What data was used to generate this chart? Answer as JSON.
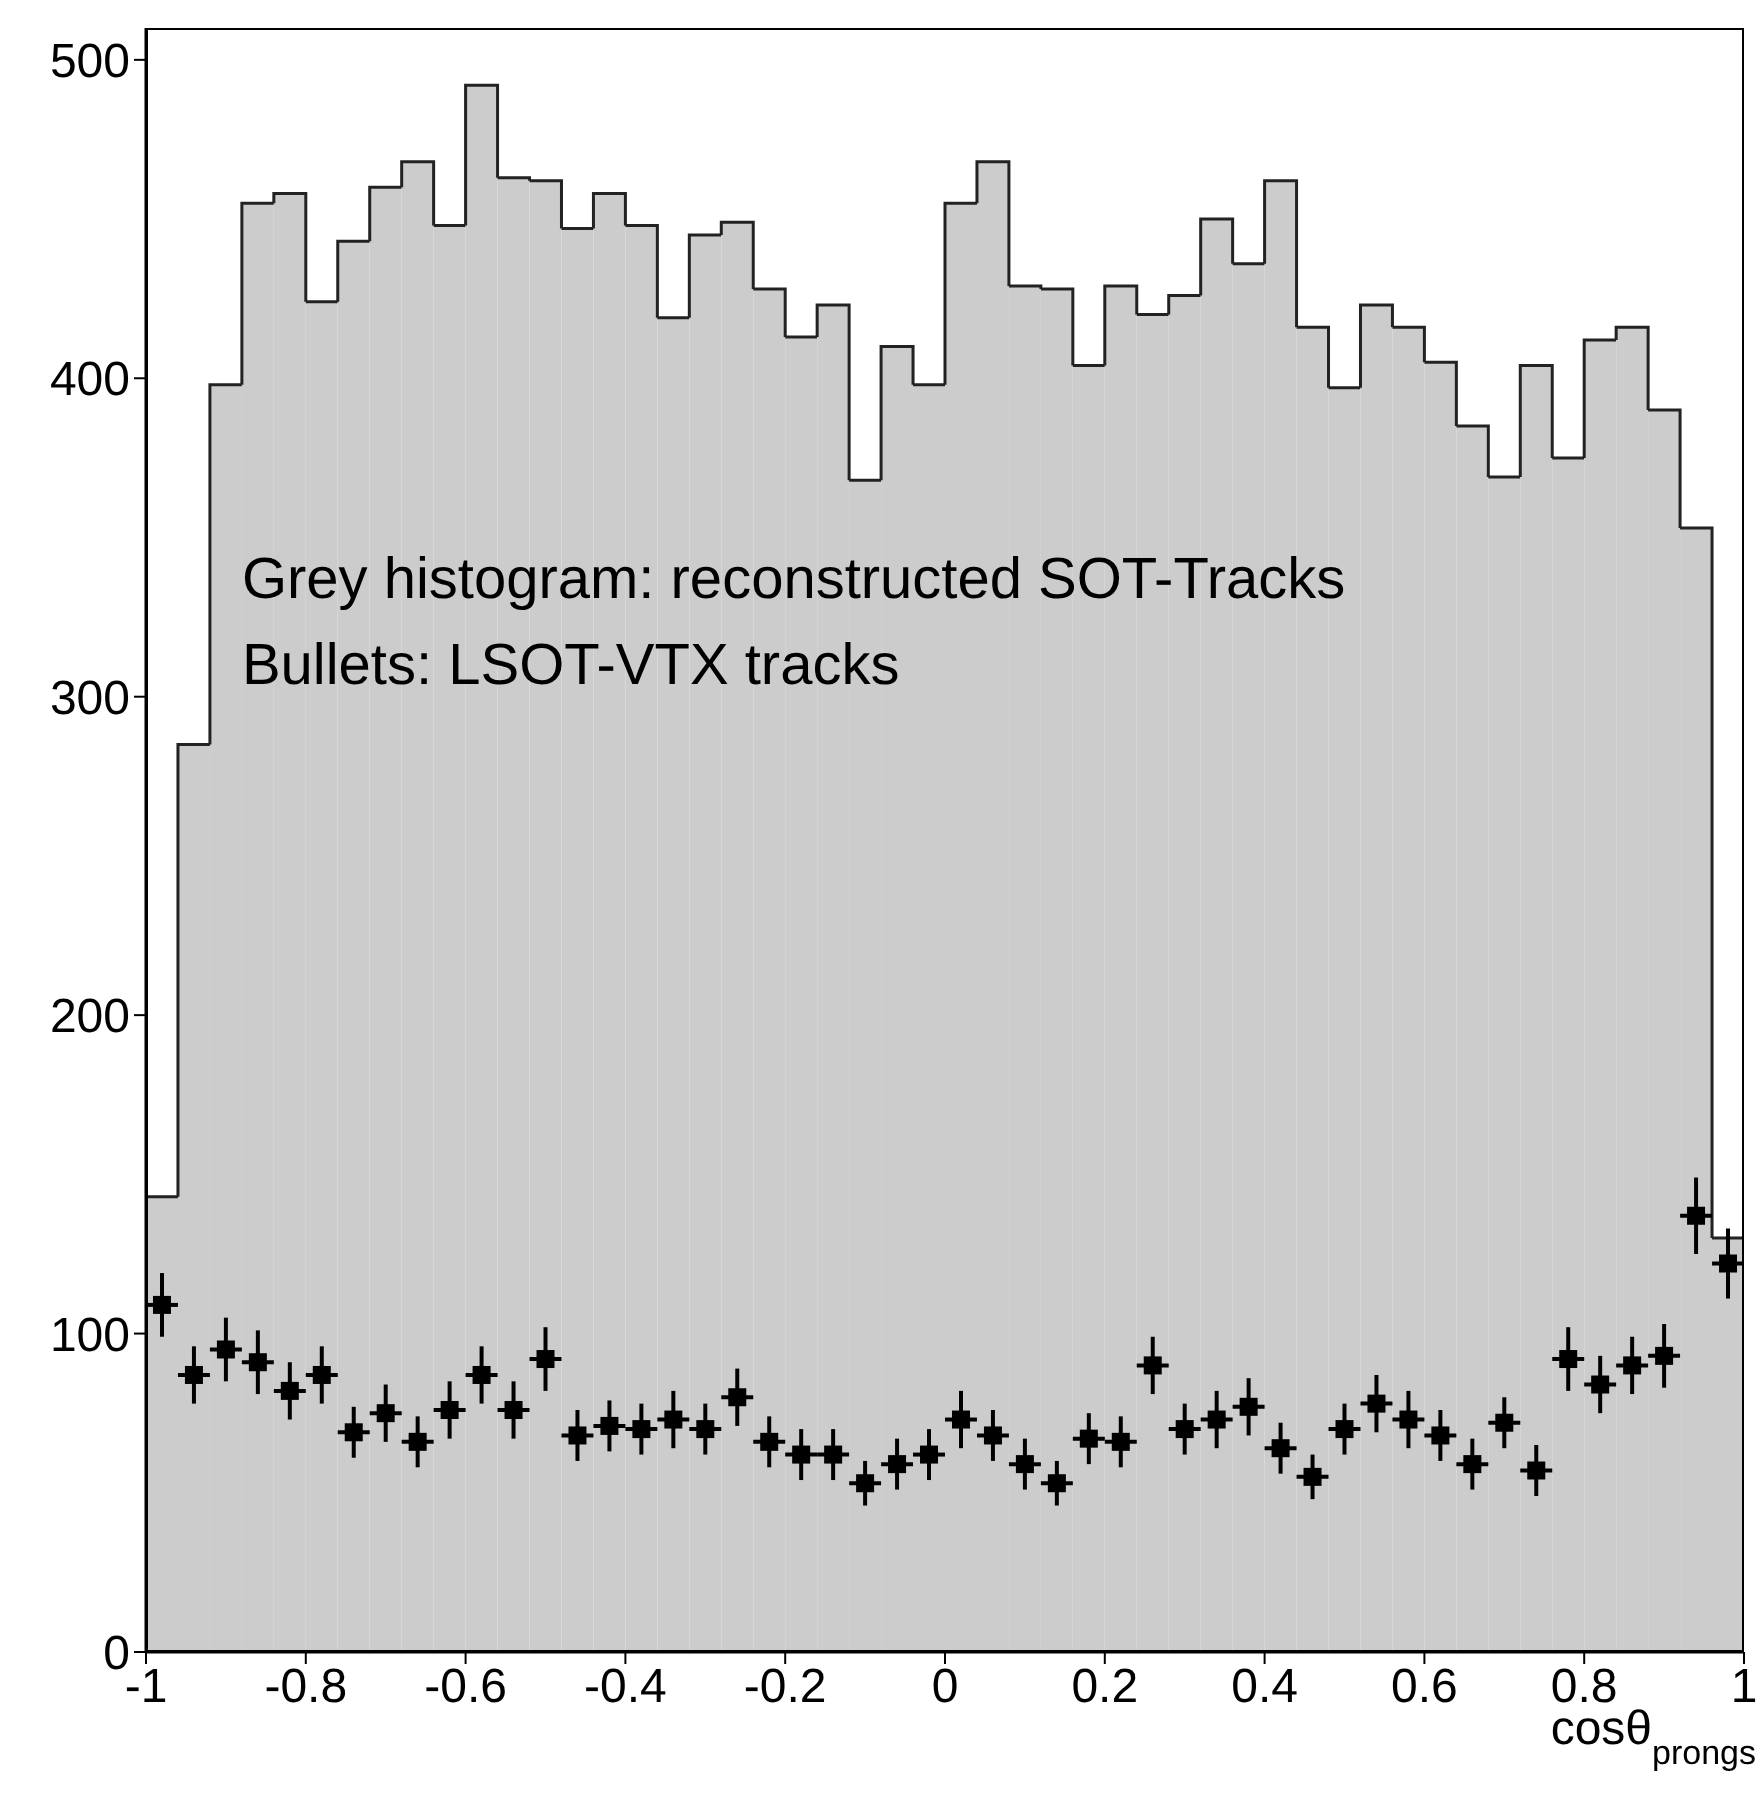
{
  "chart_data": {
    "type": "histogram",
    "xlabel": "cosθ$_{prongs}$",
    "annotations": [
      {
        "text": "Grey histogram: reconstructed SOT-Tracks",
        "x": -0.88,
        "y": 347
      },
      {
        "text": "Bullets: LSOT-VTX tracks",
        "x": -0.88,
        "y": 320
      }
    ],
    "bins": [
      -1,
      -0.96,
      -0.92,
      -0.88,
      -0.84,
      -0.8,
      -0.76,
      -0.72,
      -0.68,
      -0.64,
      -0.6,
      -0.56,
      -0.52,
      -0.48,
      -0.44,
      -0.4,
      -0.36,
      -0.32,
      -0.28,
      -0.24,
      -0.2,
      -0.16,
      -0.12,
      -0.08,
      -0.04,
      0,
      0.04,
      0.08,
      0.12,
      0.16,
      0.2,
      0.24,
      0.28,
      0.32,
      0.36,
      0.4,
      0.44,
      0.48,
      0.52,
      0.56,
      0.6,
      0.64,
      0.68,
      0.72,
      0.76,
      0.8,
      0.84,
      0.88,
      0.92,
      0.96,
      1
    ],
    "series": [
      {
        "type": "histogram",
        "color": "#cccccc",
        "values": [
          143,
          285,
          398,
          455,
          458,
          424,
          443,
          460,
          468,
          448,
          492,
          463,
          462,
          447,
          458,
          448,
          419,
          445,
          449,
          428,
          413,
          423,
          368,
          410,
          398,
          455,
          468,
          429,
          428,
          404,
          429,
          420,
          426,
          450,
          436,
          462,
          416,
          397,
          423,
          416,
          405,
          385,
          369,
          404,
          375,
          412,
          416,
          390,
          353,
          130
        ]
      },
      {
        "type": "scatter",
        "color": "#000000",
        "marker": "square",
        "x": [
          -0.98,
          -0.94,
          -0.9,
          -0.86,
          -0.82,
          -0.78,
          -0.74,
          -0.7,
          -0.66,
          -0.62,
          -0.58,
          -0.54,
          -0.5,
          -0.46,
          -0.42,
          -0.38,
          -0.34,
          -0.3,
          -0.26,
          -0.22,
          -0.18,
          -0.14,
          -0.1,
          -0.06,
          -0.02,
          0.02,
          0.06,
          0.1,
          0.14,
          0.18,
          0.22,
          0.26,
          0.3,
          0.34,
          0.38,
          0.42,
          0.46,
          0.5,
          0.54,
          0.58,
          0.62,
          0.66,
          0.7,
          0.74,
          0.78,
          0.82,
          0.86,
          0.9,
          0.94,
          0.98
        ],
        "values": [
          109,
          87,
          95,
          91,
          82,
          87,
          69,
          75,
          66,
          76,
          87,
          76,
          92,
          68,
          71,
          70,
          73,
          70,
          80,
          66,
          62,
          62,
          53,
          59,
          62,
          73,
          68,
          59,
          53,
          67,
          66,
          90,
          70,
          73,
          77,
          64,
          55,
          70,
          78,
          73,
          68,
          59,
          72,
          57,
          92,
          84,
          90,
          93,
          137,
          122
        ],
        "errors": [
          10,
          9,
          10,
          10,
          9,
          9,
          8,
          9,
          8,
          9,
          9,
          9,
          10,
          8,
          8,
          8,
          9,
          8,
          9,
          8,
          8,
          8,
          7,
          8,
          8,
          9,
          8,
          8,
          7,
          8,
          8,
          9,
          8,
          9,
          9,
          8,
          7,
          8,
          9,
          9,
          8,
          8,
          8,
          8,
          10,
          9,
          9,
          10,
          12,
          11
        ],
        "xerrors": [
          0.02,
          0.02,
          0.02,
          0.02,
          0.02,
          0.02,
          0.02,
          0.02,
          0.02,
          0.02,
          0.02,
          0.02,
          0.02,
          0.02,
          0.02,
          0.02,
          0.02,
          0.02,
          0.02,
          0.02,
          0.02,
          0.02,
          0.02,
          0.02,
          0.02,
          0.02,
          0.02,
          0.02,
          0.02,
          0.02,
          0.02,
          0.02,
          0.02,
          0.02,
          0.02,
          0.02,
          0.02,
          0.02,
          0.02,
          0.02,
          0.02,
          0.02,
          0.02,
          0.02,
          0.02,
          0.02,
          0.02,
          0.02,
          0.02,
          0.02
        ]
      }
    ],
    "xlim": [
      -1,
      1
    ],
    "xticks": [
      -1,
      -0.8,
      -0.6,
      -0.4,
      -0.2,
      0,
      0.2,
      0.4,
      0.6,
      0.8,
      1
    ],
    "ylim": [
      0,
      510
    ],
    "yticks": [
      0,
      100,
      200,
      300,
      400,
      500
    ],
    "grid": false,
    "legend": false
  }
}
